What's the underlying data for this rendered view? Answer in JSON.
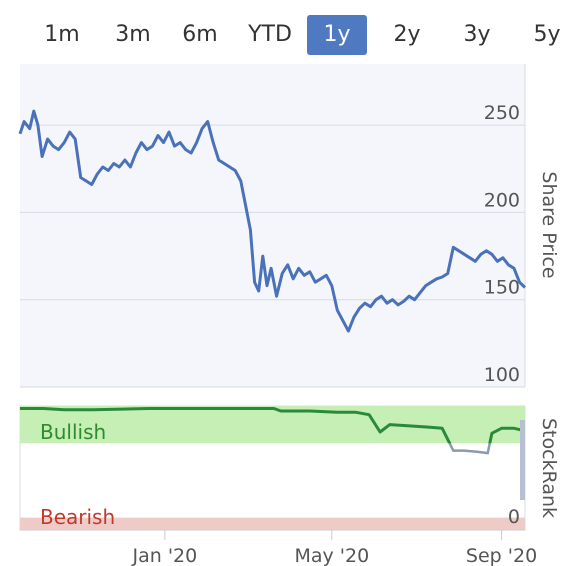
{
  "range_selector": {
    "buttons": [
      {
        "label": "1m",
        "active": false
      },
      {
        "label": "3m",
        "active": false
      },
      {
        "label": "6m",
        "active": false
      },
      {
        "label": "YTD",
        "active": false
      },
      {
        "label": "1y",
        "active": true
      },
      {
        "label": "2y",
        "active": false
      },
      {
        "label": "3y",
        "active": false
      },
      {
        "label": "5y",
        "active": false
      }
    ]
  },
  "colors": {
    "price_line": "#4a72b8",
    "active_button": "#4f79c0",
    "bullish_fill": "#c5efb4",
    "bullish_text": "#2e8b2e",
    "bearish_fill": "#eecbc7",
    "bearish_text": "#c0392b",
    "rank_line": "#2a8a3a",
    "rank_line_faded": "#8a9ab0",
    "plot_bg": "#f4f6fc"
  },
  "chart_data": [
    {
      "type": "line",
      "ylabel": "Share Price",
      "ylim": [
        100,
        285
      ],
      "yticks": [
        "100",
        "150",
        "200",
        "250"
      ],
      "x_ticks": [
        "Jan '20",
        "May '20",
        "Sep '20"
      ],
      "x_domain": [
        "2019-09-18",
        "2020-09-18"
      ],
      "series": [
        {
          "x": [
            "2019-09-18",
            "2019-09-21",
            "2019-09-25",
            "2019-09-28",
            "2019-10-01",
            "2019-10-04",
            "2019-10-08",
            "2019-10-12",
            "2019-10-16",
            "2019-10-20",
            "2019-10-24",
            "2019-10-28",
            "2019-11-01",
            "2019-11-05",
            "2019-11-09",
            "2019-11-13",
            "2019-11-17",
            "2019-11-21",
            "2019-11-25",
            "2019-11-29",
            "2019-12-03",
            "2019-12-07",
            "2019-12-11",
            "2019-12-15",
            "2019-12-19",
            "2019-12-23",
            "2019-12-27",
            "2019-12-31",
            "2020-01-04",
            "2020-01-08",
            "2020-01-12",
            "2020-01-16",
            "2020-01-20",
            "2020-01-24",
            "2020-01-28",
            "2020-02-01",
            "2020-02-05",
            "2020-02-09",
            "2020-02-13",
            "2020-02-17",
            "2020-02-21",
            "2020-02-25",
            "2020-02-28",
            "2020-03-03",
            "2020-03-06",
            "2020-03-09",
            "2020-03-12",
            "2020-03-15",
            "2020-03-18",
            "2020-03-22",
            "2020-03-26",
            "2020-03-30",
            "2020-04-03",
            "2020-04-07",
            "2020-04-11",
            "2020-04-15",
            "2020-04-19",
            "2020-04-23",
            "2020-04-27",
            "2020-05-01",
            "2020-05-05",
            "2020-05-09",
            "2020-05-13",
            "2020-05-17",
            "2020-05-21",
            "2020-05-25",
            "2020-05-29",
            "2020-06-02",
            "2020-06-06",
            "2020-06-10",
            "2020-06-14",
            "2020-06-18",
            "2020-06-22",
            "2020-06-26",
            "2020-06-30",
            "2020-07-04",
            "2020-07-08",
            "2020-07-12",
            "2020-07-16",
            "2020-07-20",
            "2020-07-24",
            "2020-07-28",
            "2020-08-01",
            "2020-08-05",
            "2020-08-09",
            "2020-08-13",
            "2020-08-17",
            "2020-08-21",
            "2020-08-25",
            "2020-08-29",
            "2020-09-02",
            "2020-09-06",
            "2020-09-10",
            "2020-09-14",
            "2020-09-18"
          ],
          "y": [
            245,
            252,
            248,
            258,
            250,
            232,
            242,
            238,
            236,
            240,
            246,
            242,
            220,
            218,
            216,
            222,
            226,
            224,
            228,
            226,
            230,
            226,
            234,
            240,
            236,
            238,
            244,
            240,
            246,
            238,
            240,
            236,
            234,
            240,
            248,
            252,
            240,
            230,
            228,
            226,
            224,
            218,
            206,
            190,
            160,
            155,
            175,
            158,
            168,
            152,
            165,
            170,
            162,
            168,
            164,
            166,
            160,
            162,
            164,
            158,
            144,
            138,
            132,
            140,
            145,
            148,
            146,
            150,
            152,
            148,
            150,
            147,
            149,
            152,
            150,
            154,
            158,
            160,
            162,
            163,
            165,
            180,
            178,
            176,
            174,
            172,
            176,
            178,
            176,
            172,
            174,
            170,
            168,
            160,
            157
          ]
        }
      ]
    },
    {
      "type": "line",
      "ylabel": "StockRank",
      "ylim": [
        0,
        100
      ],
      "yticks": [
        "0"
      ],
      "bands": [
        {
          "label": "Bullish",
          "from": 70,
          "to": 100
        },
        {
          "label": "Bearish",
          "from": 0,
          "to": 10
        }
      ],
      "series": [
        {
          "x": [
            "2019-09-18",
            "2019-10-05",
            "2019-10-20",
            "2019-11-10",
            "2019-12-20",
            "2020-02-10",
            "2020-03-20",
            "2020-03-25",
            "2020-04-15",
            "2020-05-05",
            "2020-05-18",
            "2020-05-28",
            "2020-06-05",
            "2020-06-12",
            "2020-06-25",
            "2020-07-10",
            "2020-07-20",
            "2020-07-28",
            "2020-08-05",
            "2020-08-15",
            "2020-08-22",
            "2020-08-25",
            "2020-09-01",
            "2020-09-10",
            "2020-09-18"
          ],
          "y": [
            98,
            98,
            97,
            97,
            98,
            98,
            98,
            96,
            96,
            95,
            95,
            93,
            79,
            85,
            84,
            83,
            82,
            64,
            64,
            63,
            62,
            78,
            82,
            82,
            80
          ]
        }
      ]
    }
  ]
}
